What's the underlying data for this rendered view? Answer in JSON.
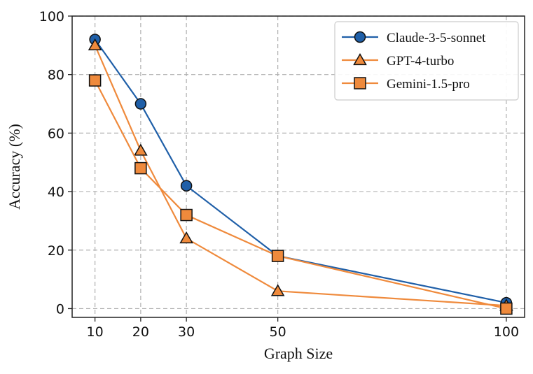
{
  "chart_data": {
    "type": "line",
    "title": "",
    "xlabel": "Graph Size",
    "ylabel": "Accuracy (%)",
    "x": [
      10,
      20,
      30,
      50,
      100
    ],
    "xticks": [
      10,
      20,
      30,
      50,
      100
    ],
    "xticklabels": [
      "10",
      "20",
      "30",
      "50",
      "100"
    ],
    "xlim": [
      5,
      104
    ],
    "yticks": [
      0,
      20,
      40,
      60,
      80,
      100
    ],
    "yticklabels": [
      "0",
      "20",
      "40",
      "60",
      "80",
      "100"
    ],
    "ylim": [
      -3,
      100
    ],
    "grid": true,
    "legend_position": "top-right",
    "series": [
      {
        "name": "Claude-3-5-sonnet",
        "values": [
          92,
          70,
          42,
          18,
          2
        ],
        "color": "#1f5fa8",
        "marker": "circle"
      },
      {
        "name": "GPT-4-turbo",
        "values": [
          90,
          54,
          24,
          6,
          1
        ],
        "color": "#ef8a3c",
        "marker": "triangle"
      },
      {
        "name": "Gemini-1.5-pro",
        "values": [
          78,
          48,
          32,
          18,
          0
        ],
        "color": "#ef8a3c",
        "marker": "square"
      }
    ]
  }
}
